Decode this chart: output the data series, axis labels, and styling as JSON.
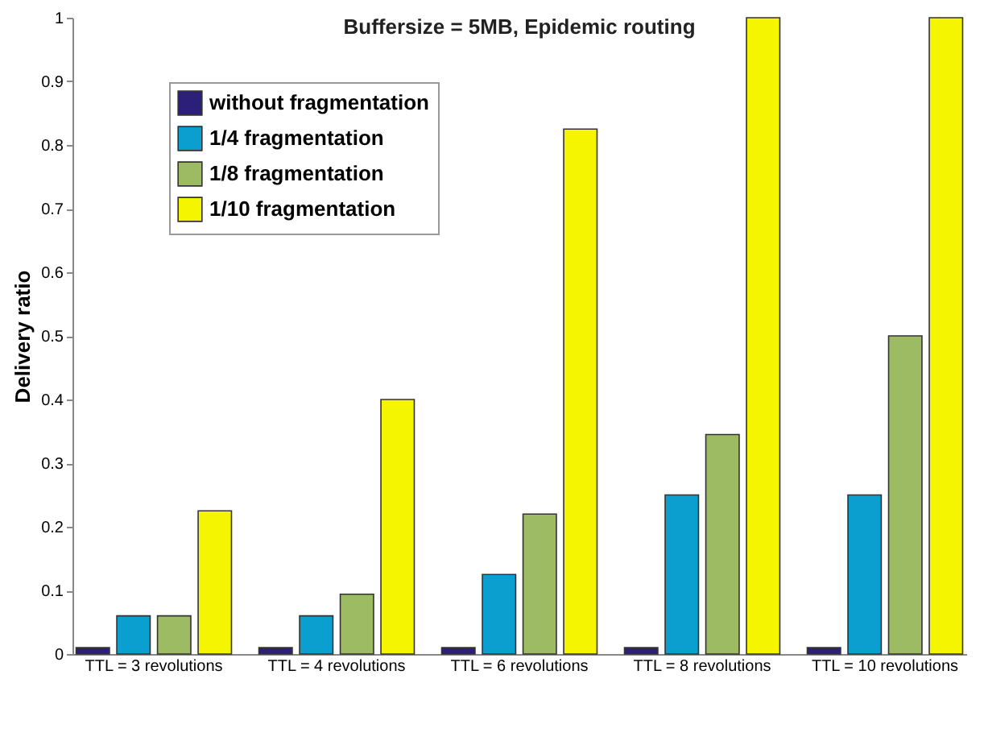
{
  "chart_data": {
    "type": "bar",
    "title": "Buffersize = 5MB, Epidemic routing",
    "ylabel": "Delivery ratio",
    "categories": [
      "TTL = 3 revolutions",
      "TTL = 4 revolutions",
      "TTL = 6 revolutions",
      "TTL = 8 revolutions",
      "TTL = 10 revolutions"
    ],
    "series": [
      {
        "name": "without fragmentation",
        "color": "#2b1f7a",
        "values": [
          0.01,
          0.01,
          0.01,
          0.01,
          0.01
        ]
      },
      {
        "name": "1/4 fragmentation",
        "color": "#0b9fd0",
        "values": [
          0.06,
          0.06,
          0.125,
          0.25,
          0.25
        ]
      },
      {
        "name": "1/8 fragmentation",
        "color": "#9cbb62",
        "values": [
          0.06,
          0.094,
          0.22,
          0.345,
          0.5
        ]
      },
      {
        "name": "1/10 fragmentation",
        "color": "#f5f500",
        "values": [
          0.225,
          0.4,
          0.825,
          1,
          1
        ]
      }
    ],
    "ylim": [
      0,
      1
    ],
    "yticks": [
      0,
      0.1,
      0.2,
      0.3,
      0.4,
      0.5,
      0.6,
      0.7,
      0.8,
      0.9,
      1
    ],
    "grid": false,
    "legend": "top left"
  }
}
